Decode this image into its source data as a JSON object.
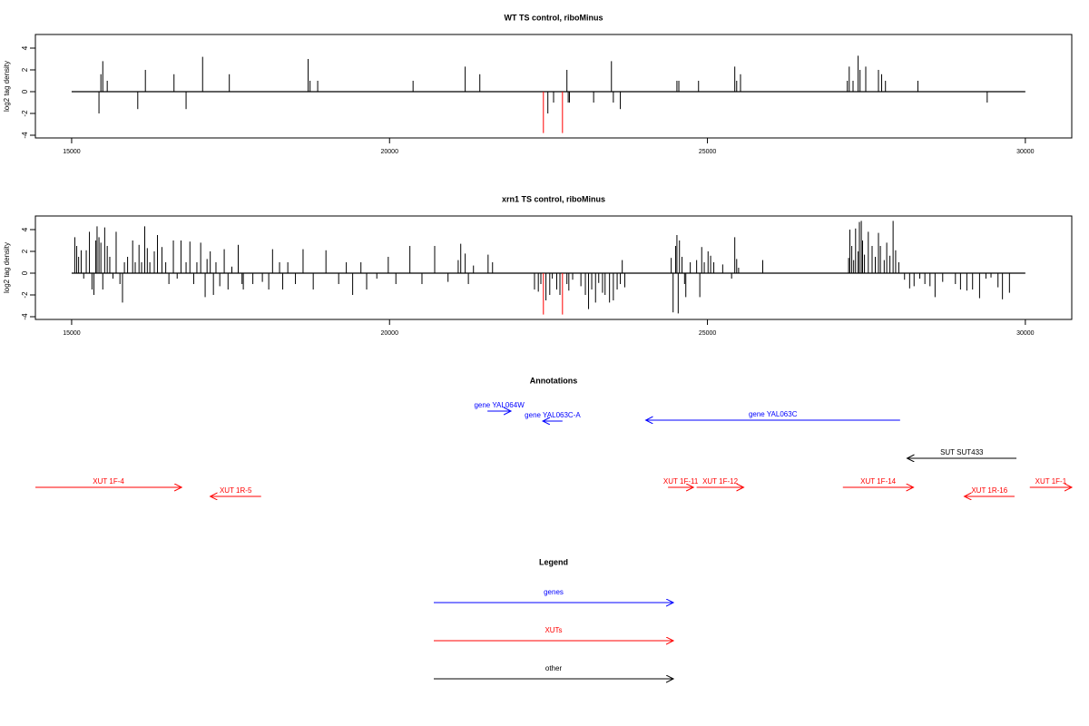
{
  "chart_data": [
    {
      "type": "bar",
      "title": "WT TS control, riboMinus",
      "ylabel": "log2 tag density",
      "xlim": [
        14430,
        30730
      ],
      "ylim": [
        -4.25,
        5.25
      ],
      "xticks": [
        15000,
        20000,
        25000,
        30000
      ],
      "yticks": [
        -4,
        -2,
        0,
        2,
        4
      ],
      "series": [
        {
          "color": "#000000",
          "x": [
            15430,
            15460,
            15490,
            15560,
            16040,
            16160,
            16610,
            16800,
            17060,
            17480,
            18720,
            18750,
            18870,
            20370,
            21190,
            21420,
            22490,
            22580,
            22790,
            22810,
            22830,
            23210,
            23490,
            23520,
            23630,
            24520,
            24550,
            24860,
            25430,
            25460,
            25520,
            27200,
            27230,
            27290,
            27370,
            27400,
            27490,
            27690,
            27740,
            27800,
            28310,
            29400
          ],
          "values": [
            -2,
            1.6,
            2.8,
            1,
            -1.6,
            2,
            1.6,
            -1.6,
            3.2,
            1.6,
            3,
            1,
            1,
            1,
            2.3,
            1.6,
            -2,
            -1,
            2,
            -1,
            -1,
            -1,
            2.8,
            -1,
            -1.6,
            1,
            1,
            1,
            2.3,
            1,
            1.6,
            1,
            2.3,
            1,
            3.3,
            2,
            2.3,
            2,
            1.6,
            1,
            1,
            -1
          ]
        },
        {
          "color": "#ff0000",
          "x": [
            22420,
            22720
          ],
          "values": [
            -3.8,
            -3.8
          ]
        }
      ]
    },
    {
      "type": "bar",
      "title": "xrn1 TS control, riboMinus",
      "ylabel": "log2 tag density",
      "xlim": [
        14430,
        30730
      ],
      "ylim": [
        -4.25,
        5.25
      ],
      "xticks": [
        15000,
        20000,
        25000,
        30000
      ],
      "yticks": [
        -4,
        -2,
        0,
        2,
        4
      ],
      "series": [
        {
          "color": "#000000",
          "x": [
            15050,
            15080,
            15110,
            15150,
            15190,
            15230,
            15280,
            15320,
            15350,
            15380,
            15400,
            15430,
            15460,
            15490,
            15520,
            15560,
            15600,
            15650,
            15700,
            15760,
            15800,
            15830,
            15880,
            15960,
            16000,
            16060,
            16100,
            16150,
            16190,
            16230,
            16300,
            16350,
            16420,
            16480,
            16530,
            16600,
            16660,
            16720,
            16800,
            16860,
            16920,
            16970,
            17030,
            17100,
            17130,
            17180,
            17230,
            17270,
            17330,
            17400,
            17460,
            17520,
            17620,
            17680,
            17700,
            17850,
            18000,
            18100,
            18160,
            18270,
            18320,
            18400,
            18520,
            18640,
            18800,
            19000,
            19200,
            19320,
            19420,
            19550,
            19640,
            19800,
            19980,
            20100,
            20320,
            20510,
            20710,
            20920,
            21080,
            21120,
            21190,
            21240,
            21320,
            21550,
            21620,
            22280,
            22340,
            22380,
            22460,
            22520,
            22560,
            22630,
            22680,
            22790,
            22820,
            22880,
            23010,
            23080,
            23130,
            23180,
            23240,
            23290,
            23350,
            23390,
            23460,
            23520,
            23580,
            23630,
            23660,
            23700,
            24430,
            24460,
            24500,
            24520,
            24540,
            24560,
            24600,
            24640,
            24660,
            24730,
            24830,
            24880,
            24910,
            24950,
            25010,
            25050,
            25100,
            25240,
            25380,
            25430,
            25460,
            25490,
            25870,
            27220,
            27240,
            27270,
            27300,
            27330,
            27370,
            27390,
            27420,
            27440,
            27470,
            27530,
            27590,
            27640,
            27690,
            27720,
            27780,
            27820,
            27870,
            27920,
            27960,
            28010,
            28100,
            28180,
            28250,
            28340,
            28420,
            28500,
            28580,
            28700,
            28900,
            28980,
            29080,
            29170,
            29280,
            29380,
            29460,
            29570,
            29640,
            29750
          ],
          "values": [
            3.3,
            2.5,
            1.5,
            2.1,
            -0.5,
            2.1,
            3.8,
            -1.5,
            -2,
            3,
            4.3,
            3.3,
            2.8,
            -1.5,
            4.2,
            2.5,
            1.5,
            -0.5,
            3.8,
            -1,
            -2.7,
            1,
            1.5,
            3,
            1,
            2.6,
            1,
            4.3,
            2.3,
            1,
            2,
            3.5,
            2.4,
            1,
            -1,
            3,
            -0.5,
            3,
            1,
            2.9,
            -1,
            1,
            2.8,
            -2.2,
            1.3,
            2,
            -2,
            1,
            -1.2,
            2.2,
            -1.5,
            0.6,
            2.6,
            -1,
            -1.5,
            -1,
            -0.8,
            -1.5,
            2.2,
            1,
            -1.5,
            1,
            -1,
            2.2,
            -1.5,
            2.1,
            -1,
            1,
            -2,
            1,
            -1.5,
            -0.5,
            1.5,
            -1,
            2.5,
            -1,
            2.5,
            -0.8,
            1.2,
            2.7,
            1.8,
            -1,
            0.7,
            1.7,
            1,
            -1.5,
            -1.7,
            -1,
            -2.5,
            -2,
            -0.5,
            -1.5,
            -2,
            -1,
            -1.6,
            -0.6,
            -1.2,
            -2,
            -3.3,
            -1.5,
            -2.7,
            -0.9,
            -1.8,
            -2,
            -2.7,
            -2.5,
            -1.5,
            -1,
            1.2,
            -1.3,
            1.4,
            -3.6,
            2.5,
            3.5,
            -3.7,
            3,
            1.5,
            -1,
            -2.2,
            1,
            1.2,
            -2.2,
            2.4,
            1,
            2,
            1.6,
            1,
            0.8,
            -0.5,
            3.3,
            1.3,
            0.5,
            1.2,
            1.4,
            4,
            2.5,
            1.2,
            4.1,
            2,
            4.7,
            4.8,
            3,
            1.7,
            3.8,
            2.5,
            1.5,
            3.7,
            2.5,
            1.2,
            2.8,
            1.6,
            4.8,
            2.1,
            1,
            -0.6,
            -1.4,
            -1.2,
            -0.5,
            -1,
            -1.2,
            -2.2,
            -0.8,
            -1,
            -1.5,
            -1.6,
            -1.5,
            -2.3,
            -0.5,
            -0.4,
            -1.3,
            -2.4,
            -1.8
          ]
        },
        {
          "color": "#ff0000",
          "x": [
            22420,
            22720
          ],
          "values": [
            -3.8,
            -3.8
          ]
        }
      ]
    }
  ],
  "annotations": {
    "title": "Annotations",
    "features": [
      {
        "label": "gene YAL064W",
        "color": "#0000ff",
        "start": 21540,
        "end": 21910
      },
      {
        "label": "gene YAL063C-A",
        "color": "#0000ff",
        "start": 22720,
        "end": 22410
      },
      {
        "label": "gene YAL063C",
        "color": "#0000ff",
        "start": 28030,
        "end": 24030
      },
      {
        "label": "SUT SUT433",
        "color": "#000000",
        "start": 29860,
        "end": 28140
      },
      {
        "label": "XUT 1F-4",
        "color": "#ff0000",
        "start": 14430,
        "end": 16730
      },
      {
        "label": "XUT 1R-5",
        "color": "#ff0000",
        "start": 17980,
        "end": 17180
      },
      {
        "label": "XUT 1F-11",
        "color": "#ff0000",
        "start": 24380,
        "end": 24780
      },
      {
        "label": "XUT 1F-12",
        "color": "#ff0000",
        "start": 24830,
        "end": 25570
      },
      {
        "label": "XUT 1F-14",
        "color": "#ff0000",
        "start": 27130,
        "end": 28240
      },
      {
        "label": "XUT 1R-16",
        "color": "#ff0000",
        "start": 29830,
        "end": 29040
      },
      {
        "label": "XUT 1F-1",
        "color": "#ff0000",
        "start": 30070,
        "end": 30730
      }
    ]
  },
  "legend": {
    "title": "Legend",
    "items": [
      {
        "label": "genes",
        "color": "#0000ff"
      },
      {
        "label": "XUTs",
        "color": "#ff0000"
      },
      {
        "label": "other",
        "color": "#000000"
      }
    ]
  }
}
